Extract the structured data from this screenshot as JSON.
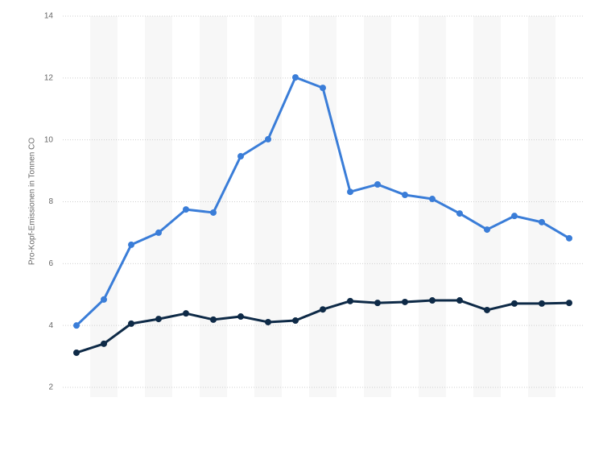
{
  "chart_data": {
    "type": "line",
    "y_label": "Pro-Kopf-Emissionen in Tonnen CO",
    "categories": [
      null,
      null,
      null,
      null,
      null,
      null,
      null,
      null,
      null,
      null,
      null,
      null,
      null,
      null,
      null,
      null,
      null,
      null,
      null
    ],
    "series": [
      {
        "color": "#3a7dd8",
        "values": [
          4.0,
          4.84,
          6.61,
          7.0,
          7.75,
          7.65,
          9.47,
          10.02,
          12.02,
          11.68,
          8.32,
          8.56,
          8.22,
          8.09,
          7.62,
          7.1,
          7.54,
          7.34,
          6.82
        ]
      },
      {
        "color": "#0e2a47",
        "values": [
          3.12,
          3.41,
          4.06,
          4.21,
          4.39,
          4.19,
          4.29,
          4.11,
          4.16,
          4.52,
          4.79,
          4.73,
          4.76,
          4.81,
          4.81,
          4.5,
          4.71,
          4.71,
          4.73
        ]
      }
    ],
    "ylim": [
      2,
      14
    ],
    "yticks": [
      2,
      4,
      6,
      8,
      10,
      12,
      14
    ],
    "grid": true
  }
}
